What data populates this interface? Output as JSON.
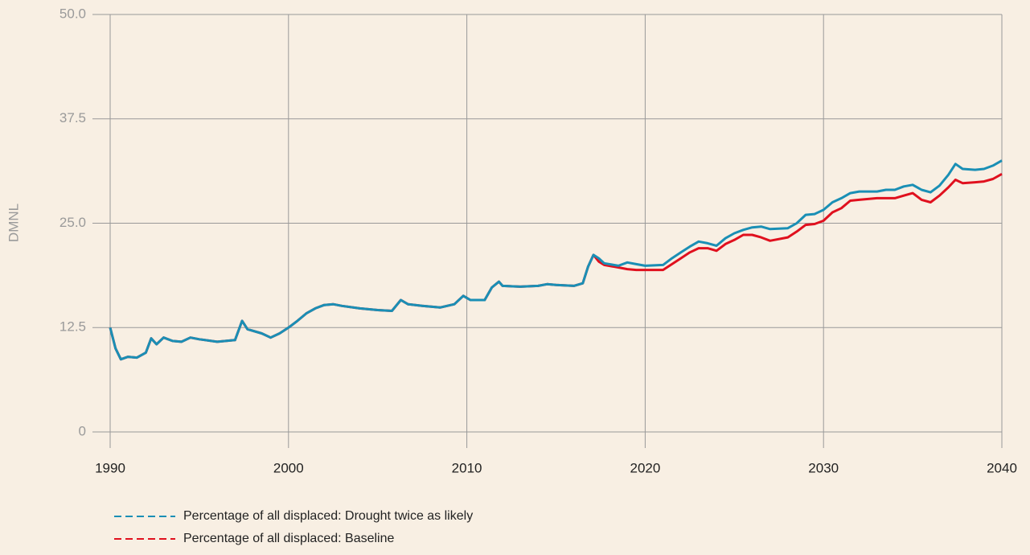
{
  "chart_data": {
    "type": "line",
    "ylabel": "DMNL",
    "xlim": [
      1990,
      2040
    ],
    "xticks": [
      1990,
      2000,
      2010,
      2020,
      2030,
      2040
    ],
    "ylim": [
      0,
      50
    ],
    "yticks": [
      0,
      12.5,
      {
        "value": 25,
        "label": "25.0"
      },
      37.5,
      {
        "value": 50,
        "label": "50.0"
      }
    ],
    "grid": true,
    "x": [
      1990,
      1990.3,
      1990.6,
      1991,
      1991.5,
      1992,
      1992.3,
      1992.6,
      1993,
      1993.5,
      1994,
      1994.5,
      1995,
      1996,
      1997,
      1997.4,
      1997.7,
      1998.5,
      1999,
      1999.5,
      2000,
      2000.5,
      2001,
      2001.5,
      2002,
      2002.5,
      2003,
      2004,
      2005,
      2005.8,
      2006.3,
      2006.7,
      2007.5,
      2008.5,
      2009.3,
      2009.8,
      2010.2,
      2011,
      2011.4,
      2011.8,
      2012,
      2013,
      2014,
      2014.5,
      2015,
      2016,
      2016.5,
      2016.8,
      2017.1,
      2017.4,
      2017.7,
      2018.5,
      2019,
      2019.5,
      2020,
      2021,
      2021.5,
      2022,
      2022.5,
      2023,
      2023.5,
      2024,
      2024.5,
      2025,
      2025.5,
      2026,
      2026.5,
      2027,
      2028,
      2028.5,
      2029,
      2029.5,
      2030,
      2030.5,
      2031,
      2031.5,
      2032,
      2033,
      2033.5,
      2034,
      2034.5,
      2035,
      2035.5,
      2036,
      2036.5,
      2037,
      2037.4,
      2037.8,
      2038.5,
      2039,
      2039.5,
      2040
    ],
    "series": [
      {
        "name": "Percentage of all displaced: Baseline",
        "color": "#e0101e",
        "values": [
          12.5,
          10,
          8.7,
          9,
          8.9,
          9.5,
          11.2,
          10.5,
          11.3,
          10.9,
          10.8,
          11.3,
          11.1,
          10.8,
          11,
          13.3,
          12.3,
          11.8,
          11.3,
          11.8,
          12.5,
          13.3,
          14.2,
          14.8,
          15.2,
          15.3,
          15.1,
          14.8,
          14.6,
          14.5,
          15.8,
          15.3,
          15.1,
          14.9,
          15.3,
          16.3,
          15.8,
          15.8,
          17.3,
          18,
          17.5,
          17.4,
          17.5,
          17.7,
          17.6,
          17.5,
          17.8,
          19.8,
          21.2,
          20.4,
          20.0,
          19.7,
          19.5,
          19.4,
          19.4,
          19.4,
          20.1,
          20.8,
          21.5,
          22.0,
          22.0,
          21.7,
          22.5,
          23.0,
          23.6,
          23.6,
          23.3,
          22.9,
          23.3,
          24.0,
          24.8,
          24.9,
          25.3,
          26.3,
          26.8,
          27.7,
          27.8,
          28.0,
          28.0,
          28.0,
          28.3,
          28.6,
          27.8,
          27.5,
          28.3,
          29.3,
          30.2,
          29.8,
          29.9,
          30.0,
          30.3,
          30.9
        ]
      },
      {
        "name": "Percentage of all displaced: Drought twice as likely",
        "color": "#1a8fb5",
        "values": [
          12.5,
          10,
          8.7,
          9,
          8.9,
          9.5,
          11.2,
          10.5,
          11.3,
          10.9,
          10.8,
          11.3,
          11.1,
          10.8,
          11,
          13.3,
          12.3,
          11.8,
          11.3,
          11.8,
          12.5,
          13.3,
          14.2,
          14.8,
          15.2,
          15.3,
          15.1,
          14.8,
          14.6,
          14.5,
          15.8,
          15.3,
          15.1,
          14.9,
          15.3,
          16.3,
          15.8,
          15.8,
          17.3,
          18,
          17.5,
          17.4,
          17.5,
          17.7,
          17.6,
          17.5,
          17.8,
          19.8,
          21.2,
          20.8,
          20.2,
          19.9,
          20.3,
          20.1,
          19.9,
          20.0,
          20.8,
          21.5,
          22.2,
          22.8,
          22.6,
          22.3,
          23.2,
          23.8,
          24.2,
          24.5,
          24.6,
          24.3,
          24.4,
          25.0,
          26.0,
          26.1,
          26.6,
          27.5,
          28.0,
          28.6,
          28.8,
          28.8,
          29.0,
          29.0,
          29.4,
          29.6,
          29.0,
          28.7,
          29.5,
          30.8,
          32.1,
          31.5,
          31.4,
          31.5,
          31.9,
          32.5
        ]
      }
    ]
  }
}
